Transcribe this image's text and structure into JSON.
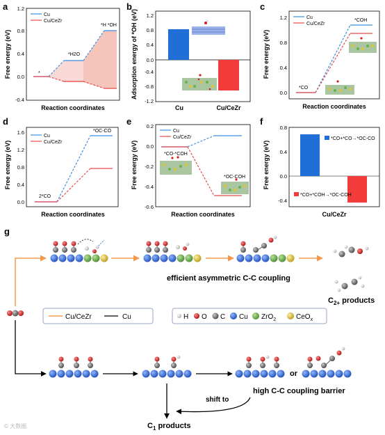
{
  "colors": {
    "cu": "#3a8ee6",
    "cucezr": "#e84a4a",
    "bar_cu": "#1f6fd6",
    "bar_cucezr": "#f23b3b",
    "arrow_orange": "#f29a4a",
    "cu_atom": "#1e63d8",
    "zro2_atom": "#6ab04c",
    "ceox_atom": "#d9c542",
    "o_atom": "#d11f1f",
    "c_atom": "#666666",
    "h_atom": "#f2f2f2"
  },
  "panels": {
    "a": {
      "label": "a",
      "xlabel": "Reaction coordinates",
      "ylabel": "Free energy (eV)"
    },
    "b": {
      "label": "b",
      "xlabel": "",
      "ylabel": "Adsorption energy of *OH (eV)"
    },
    "c": {
      "label": "c",
      "xlabel": "Reaction coordinates",
      "ylabel": "Free energy (eV)"
    },
    "d": {
      "label": "d",
      "xlabel": "Reaction coordinates",
      "ylabel": "Free energy (eV)"
    },
    "e": {
      "label": "e",
      "xlabel": "Reaction coordinates",
      "ylabel": "Free energy (eV)"
    },
    "f": {
      "label": "f",
      "xlabel": "Cu/CeZr",
      "ylabel": "Free energy (eV)"
    },
    "g": {
      "label": "g"
    }
  },
  "chart_data": [
    {
      "id": "a",
      "type": "line",
      "yticks": [
        "-0.4",
        "0.0",
        "0.4",
        "0.8",
        "1.2"
      ],
      "ylim": [
        -0.4,
        1.2
      ],
      "states": [
        "*",
        "*H2O",
        "*H *OH"
      ],
      "series": [
        {
          "name": "Cu",
          "values": [
            0.0,
            0.27,
            0.8
          ]
        },
        {
          "name": "Cu/CeZr",
          "values": [
            0.0,
            -0.08,
            -0.2
          ]
        }
      ],
      "annotations": [
        "*",
        "*H2O",
        "*H *OH"
      ]
    },
    {
      "id": "b",
      "type": "bar",
      "categories": [
        "Cu",
        "Cu/CeZr"
      ],
      "values": [
        0.89,
        -0.91
      ],
      "yticks": [
        "-1.2",
        "-0.8",
        "-0.4",
        "0.0",
        "0.4",
        "0.8",
        "1.2"
      ],
      "ylim": [
        -1.2,
        1.2
      ]
    },
    {
      "id": "c",
      "type": "line",
      "yticks": [
        "0.0",
        "0.4",
        "0.8",
        "1.2"
      ],
      "ylim": [
        -0.1,
        1.2
      ],
      "states": [
        "*CO",
        "*COH"
      ],
      "series": [
        {
          "name": "Cu",
          "values": [
            0.0,
            1.08
          ]
        },
        {
          "name": "Cu/CeZr",
          "values": [
            0.0,
            0.94
          ]
        }
      ],
      "annotations": [
        "*CO",
        "*COH"
      ]
    },
    {
      "id": "d",
      "type": "line",
      "yticks": [
        "0.0",
        "0.4",
        "0.8",
        "1.2",
        "1.6"
      ],
      "ylim": [
        -0.15,
        1.7
      ],
      "states": [
        "2*CO",
        "*OC-CO"
      ],
      "series": [
        {
          "name": "Cu",
          "values": [
            0.0,
            1.52
          ]
        },
        {
          "name": "Cu/CeZr",
          "values": [
            0.0,
            0.75
          ]
        }
      ],
      "annotations": [
        "2*CO",
        "*OC-CO"
      ]
    },
    {
      "id": "e",
      "type": "line",
      "yticks": [
        "-0.6",
        "-0.4",
        "-0.2",
        "0.0",
        "0.2"
      ],
      "ylim": [
        -0.6,
        0.2
      ],
      "states": [
        "*CO-*COH",
        "*OC-COH"
      ],
      "series": [
        {
          "name": "Cu",
          "values": [
            0.0,
            0.12
          ]
        },
        {
          "name": "Cu/CeZr",
          "values": [
            0.0,
            -0.47
          ]
        }
      ],
      "annotations": [
        "*CO-*COH",
        "*OC-COH"
      ]
    },
    {
      "id": "f",
      "type": "bar",
      "categories": [
        "*CO+*CO→*OC-CO",
        "*CO+*COH→*OC-COH"
      ],
      "values": [
        0.75,
        -0.47
      ],
      "yticks": [
        "-0.4",
        "0.0",
        "0.4",
        "0.8"
      ],
      "ylim": [
        -0.55,
        0.9
      ]
    }
  ],
  "legend": {
    "cu": "Cu",
    "cucezr": "Cu/CeZr"
  },
  "scheme": {
    "efficient_label": "efficient asymmetric C-C coupling",
    "c2_label": "C",
    "c2_sub": "2+",
    "c2_suffix": " products",
    "legend_cucezr": "Cu/CeZr",
    "legend_cu": "Cu",
    "atoms": {
      "h": "H",
      "o": "O",
      "c": "C",
      "cu": "Cu",
      "zro2": "ZrO",
      "zro2_sub": "2",
      "ceox": "CeO",
      "ceox_sub": "x"
    },
    "or_label": "or",
    "barrier_label": "high C-C coupling barrier",
    "shift_label": "shift to",
    "c1_label": "C",
    "c1_sub": "1",
    "c1_suffix": " products"
  },
  "watermark": "© 大数据"
}
